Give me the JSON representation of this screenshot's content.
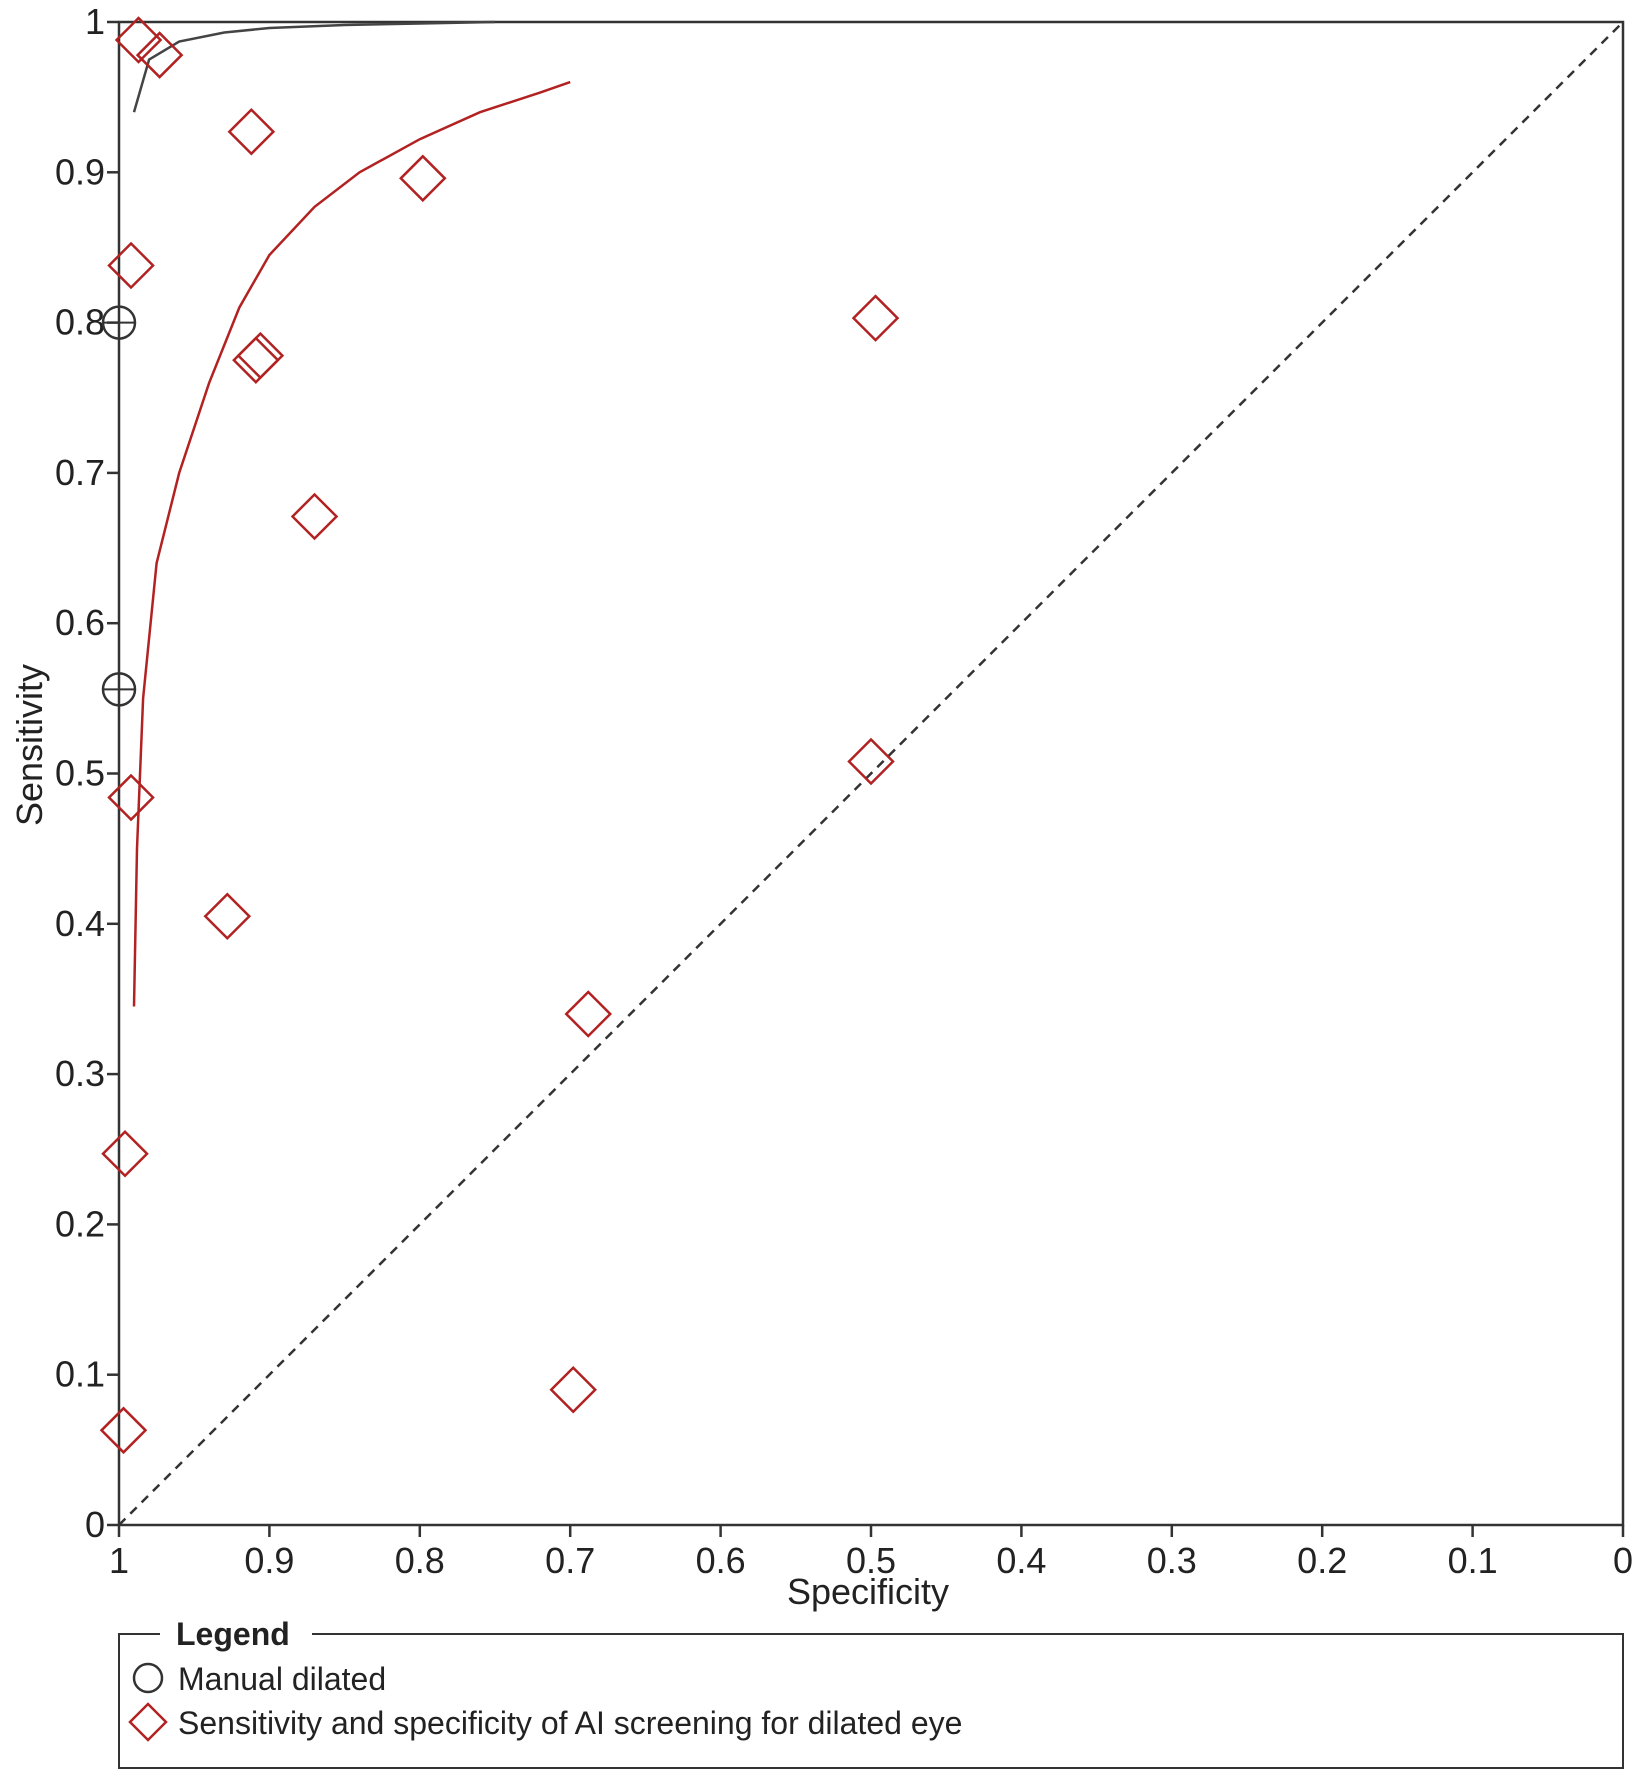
{
  "chart_data": {
    "type": "scatter",
    "title": "",
    "xlabel": "Specificity",
    "ylabel": "Sensitivity",
    "xlim": [
      1,
      0
    ],
    "ylim": [
      0,
      1
    ],
    "x_ticks": [
      "1",
      "0.9",
      "0.8",
      "0.7",
      "0.6",
      "0.5",
      "0.4",
      "0.3",
      "0.2",
      "0.1",
      "0"
    ],
    "y_ticks": [
      "0",
      "0.1",
      "0.2",
      "0.3",
      "0.4",
      "0.5",
      "0.6",
      "0.7",
      "0.8",
      "0.9",
      "1"
    ],
    "grid": false,
    "reference_line": "diagonal, dashed",
    "legend": {
      "title": "Legend",
      "placement": "bottom",
      "items": [
        {
          "label": "Manual dilated",
          "marker": "circle",
          "color": "#333333"
        },
        {
          "label": "Sensitivity and specificity of AI screening for dilated eye",
          "marker": "diamond",
          "color": "#b22222"
        }
      ]
    },
    "series": [
      {
        "name": "Manual dilated",
        "marker": "circle",
        "color": "#333333",
        "points": [
          {
            "specificity": 1.0,
            "sensitivity": 0.8
          },
          {
            "specificity": 1.0,
            "sensitivity": 0.556
          }
        ],
        "sroc_curve": [
          {
            "specificity": 0.99,
            "sensitivity": 0.94
          },
          {
            "specificity": 0.98,
            "sensitivity": 0.975
          },
          {
            "specificity": 0.96,
            "sensitivity": 0.987
          },
          {
            "specificity": 0.93,
            "sensitivity": 0.993
          },
          {
            "specificity": 0.9,
            "sensitivity": 0.996
          },
          {
            "specificity": 0.85,
            "sensitivity": 0.998
          },
          {
            "specificity": 0.8,
            "sensitivity": 0.999
          },
          {
            "specificity": 0.75,
            "sensitivity": 1.0
          }
        ]
      },
      {
        "name": "Sensitivity and specificity of AI screening for dilated eye",
        "marker": "diamond",
        "color": "#b22222",
        "points": [
          {
            "specificity": 0.987,
            "sensitivity": 0.988
          },
          {
            "specificity": 0.973,
            "sensitivity": 0.978
          },
          {
            "specificity": 0.912,
            "sensitivity": 0.927
          },
          {
            "specificity": 0.798,
            "sensitivity": 0.896
          },
          {
            "specificity": 0.992,
            "sensitivity": 0.838
          },
          {
            "specificity": 0.497,
            "sensitivity": 0.803
          },
          {
            "specificity": 0.906,
            "sensitivity": 0.778
          },
          {
            "specificity": 0.909,
            "sensitivity": 0.775
          },
          {
            "specificity": 0.87,
            "sensitivity": 0.671
          },
          {
            "specificity": 0.5,
            "sensitivity": 0.508
          },
          {
            "specificity": 0.992,
            "sensitivity": 0.484
          },
          {
            "specificity": 0.928,
            "sensitivity": 0.405
          },
          {
            "specificity": 0.688,
            "sensitivity": 0.34
          },
          {
            "specificity": 0.996,
            "sensitivity": 0.247
          },
          {
            "specificity": 0.698,
            "sensitivity": 0.09
          },
          {
            "specificity": 0.997,
            "sensitivity": 0.063
          }
        ],
        "sroc_curve": [
          {
            "specificity": 0.99,
            "sensitivity": 0.345
          },
          {
            "specificity": 0.988,
            "sensitivity": 0.45
          },
          {
            "specificity": 0.984,
            "sensitivity": 0.55
          },
          {
            "specificity": 0.975,
            "sensitivity": 0.64
          },
          {
            "specificity": 0.96,
            "sensitivity": 0.7
          },
          {
            "specificity": 0.94,
            "sensitivity": 0.76
          },
          {
            "specificity": 0.92,
            "sensitivity": 0.81
          },
          {
            "specificity": 0.9,
            "sensitivity": 0.845
          },
          {
            "specificity": 0.87,
            "sensitivity": 0.877
          },
          {
            "specificity": 0.84,
            "sensitivity": 0.9
          },
          {
            "specificity": 0.8,
            "sensitivity": 0.922
          },
          {
            "specificity": 0.76,
            "sensitivity": 0.94
          },
          {
            "specificity": 0.72,
            "sensitivity": 0.953
          },
          {
            "specificity": 0.7,
            "sensitivity": 0.96
          }
        ]
      }
    ]
  }
}
